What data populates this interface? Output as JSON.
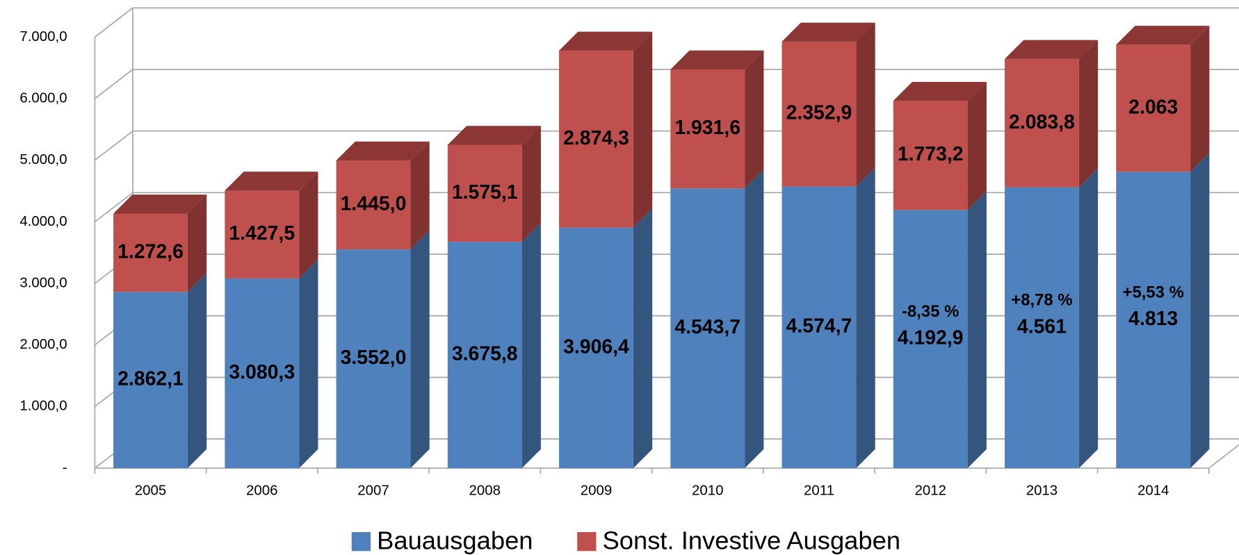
{
  "chart_data": {
    "type": "bar3d_stacked",
    "categories": [
      "2005",
      "2006",
      "2007",
      "2008",
      "2009",
      "2010",
      "2011",
      "2012",
      "2013",
      "2014"
    ],
    "series": [
      {
        "name": "Bauausgaben",
        "color": "#4f81bd",
        "side_color": "#34557e",
        "top_color": "#3d6596",
        "values": [
          2862.1,
          3080.3,
          3552.0,
          3675.8,
          3906.4,
          4543.7,
          4574.7,
          4192.9,
          4561,
          4813
        ],
        "value_labels": [
          "2.862,1",
          "3.080,3",
          "3.552,0",
          "3.675,8",
          "3.906,4",
          "4.543,7",
          "4.574,7",
          "4.192,9",
          "4.561",
          "4.813"
        ]
      },
      {
        "name": "Sonst. Investive Ausgaben",
        "color": "#c0504d",
        "side_color": "#7f3230",
        "top_color": "#8c3735",
        "values": [
          1272.6,
          1427.5,
          1445.0,
          1575.1,
          2874.3,
          1931.6,
          2352.9,
          1773.2,
          2083.8,
          2063
        ],
        "value_labels": [
          "1.272,6",
          "1.427,5",
          "1.445,0",
          "1.575,1",
          "2.874,3",
          "1.931,6",
          "2.352,9",
          "1.773,2",
          "2.083,8",
          "2.063"
        ]
      }
    ],
    "annotations": [
      {
        "category": "2012",
        "text": "-8,35 %"
      },
      {
        "category": "2013",
        "text": "+8,78 %"
      },
      {
        "category": "2014",
        "text": "+5,53 %"
      }
    ],
    "ylim": [
      0,
      7000
    ],
    "yticks": [
      {
        "value": 0,
        "label": "-"
      },
      {
        "value": 1000,
        "label": "1.000,0"
      },
      {
        "value": 2000,
        "label": "2.000,0"
      },
      {
        "value": 3000,
        "label": "3.000,0"
      },
      {
        "value": 4000,
        "label": "4.000,0"
      },
      {
        "value": 5000,
        "label": "5.000,0"
      },
      {
        "value": 6000,
        "label": "6.000,0"
      },
      {
        "value": 7000,
        "label": "7.000,0"
      }
    ],
    "grid": true,
    "legend": "bottom"
  }
}
